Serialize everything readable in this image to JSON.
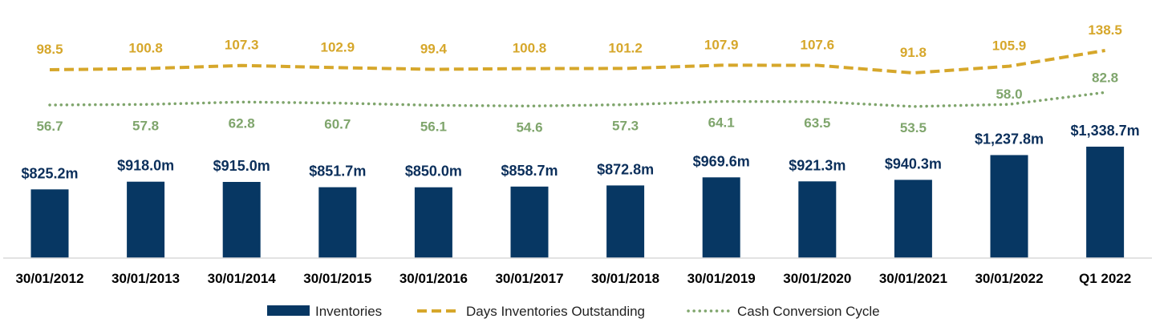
{
  "chart_data": {
    "type": "bar",
    "categories": [
      "30/01/2012",
      "30/01/2013",
      "30/01/2014",
      "30/01/2015",
      "30/01/2016",
      "30/01/2017",
      "30/01/2018",
      "30/01/2019",
      "30/01/2020",
      "30/01/2021",
      "30/01/2022",
      "Q1 2022"
    ],
    "series": [
      {
        "name": "Inventories",
        "kind": "bar",
        "color": "#073763",
        "values": [
          825.2,
          918.0,
          915.0,
          851.7,
          850.0,
          858.7,
          872.8,
          969.6,
          921.3,
          940.3,
          1237.8,
          1338.7
        ],
        "labels": [
          "$825.2m",
          "$918.0m",
          "$915.0m",
          "$851.7m",
          "$850.0m",
          "$858.7m",
          "$872.8m",
          "$969.6m",
          "$921.3m",
          "$940.3m",
          "$1,237.8m",
          "$1,338.7m"
        ]
      },
      {
        "name": "Days Inventories Outstanding",
        "kind": "line-dashed",
        "color": "#d6a72b",
        "values": [
          98.5,
          100.8,
          107.3,
          102.9,
          99.4,
          100.8,
          101.2,
          107.9,
          107.6,
          91.8,
          105.9,
          138.5
        ],
        "labels": [
          "98.5",
          "100.8",
          "107.3",
          "102.9",
          "99.4",
          "100.8",
          "101.2",
          "107.9",
          "107.6",
          "91.8",
          "105.9",
          "138.5"
        ]
      },
      {
        "name": "Cash Conversion Cycle",
        "kind": "line-dotted",
        "color": "#7fa56c",
        "values": [
          56.7,
          57.8,
          62.8,
          60.7,
          56.1,
          54.6,
          57.3,
          64.1,
          63.5,
          53.5,
          58.0,
          82.8
        ],
        "labels": [
          "56.7",
          "57.8",
          "62.8",
          "60.7",
          "56.1",
          "54.6",
          "57.3",
          "64.1",
          "63.5",
          "53.5",
          "58.0",
          "82.8"
        ]
      }
    ],
    "legend": [
      "Inventories",
      "Days Inventories Outstanding",
      "Cash Conversion Cycle"
    ],
    "legend_position": "bottom",
    "grid": false,
    "title": "",
    "xlabel": "",
    "ylabel": ""
  }
}
